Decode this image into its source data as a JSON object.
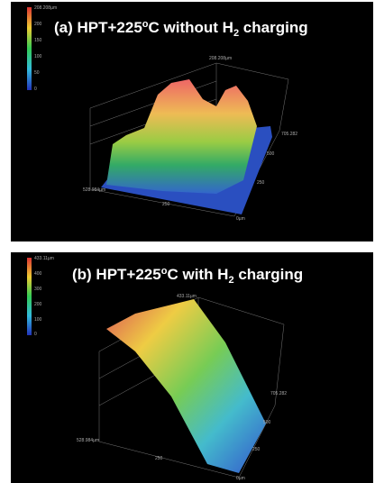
{
  "panels": [
    {
      "title": {
        "lead": "(a) HPT+225",
        "sup": "o",
        "mid": "C without H",
        "sub": "2",
        "tail": " charging"
      },
      "colorbar": {
        "top": "208.208µm",
        "ticks": [
          "200",
          "150",
          "100",
          "50",
          "0"
        ]
      },
      "axes": {
        "z": "208.208µm",
        "y": [
          "705.282",
          "500",
          "250"
        ],
        "x": [
          "528.984µm",
          "250"
        ],
        "origin": "0µm"
      }
    },
    {
      "title": {
        "lead": "(b) HPT+225",
        "sup": "o",
        "mid": "C with H",
        "sub": "2",
        "tail": " charging"
      },
      "colorbar": {
        "top": "433.11µm",
        "ticks": [
          "400",
          "300",
          "200",
          "100",
          "0"
        ]
      },
      "axes": {
        "z": "433.11µm",
        "y": [
          "705.282",
          "500",
          "250"
        ],
        "x": [
          "528.984µm",
          "250"
        ],
        "origin": "0µm"
      }
    }
  ]
}
